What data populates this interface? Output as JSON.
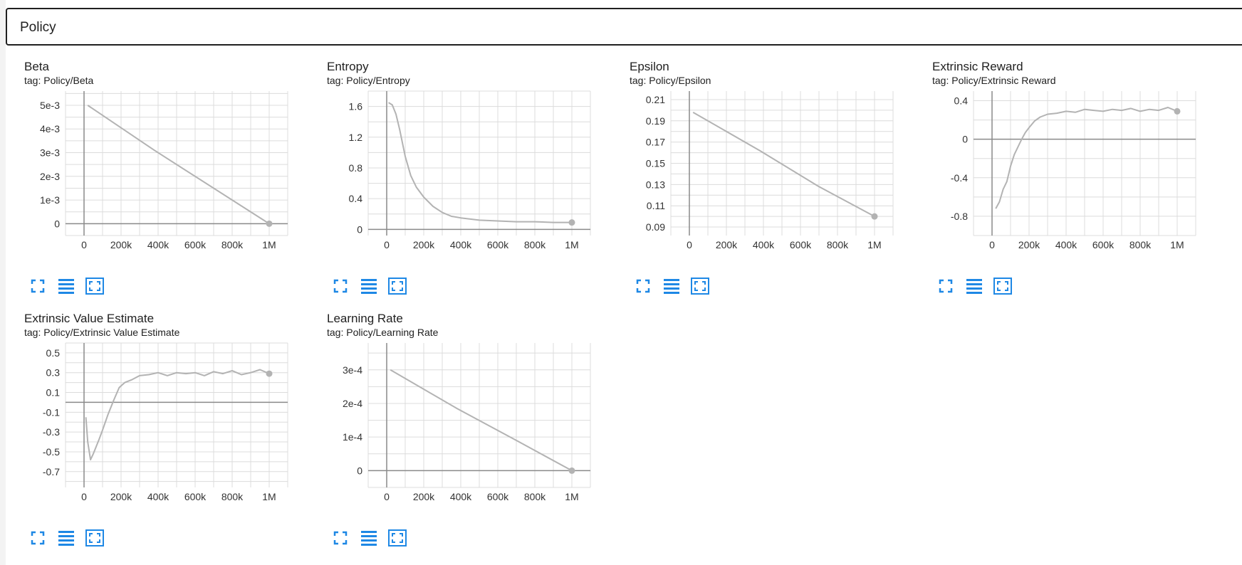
{
  "header": {
    "title": "Policy"
  },
  "colors": {
    "line": "#b3b3b3",
    "grid": "#dcdcdc",
    "axis": "#8a8a8a",
    "icon": "#1e88e5"
  },
  "icons": [
    "fullscreen-icon",
    "data-table-icon",
    "fit-domain-icon"
  ],
  "cards": [
    {
      "title": "Beta",
      "tag": "tag: Policy/Beta",
      "chart_data": {
        "type": "line",
        "x": [
          20000,
          380000,
          1000000
        ],
        "y": [
          0.005,
          0.0031,
          0.0
        ],
        "xlim": [
          -100000,
          1100000
        ],
        "ylim": [
          -0.0005,
          0.0056
        ],
        "xticks": [
          0,
          200000,
          400000,
          600000,
          800000,
          1000000
        ],
        "xticklabels": [
          "0",
          "200k",
          "400k",
          "600k",
          "800k",
          "1M"
        ],
        "yticks": [
          0,
          0.001,
          0.002,
          0.003,
          0.004,
          0.005
        ],
        "yticklabels": [
          "0",
          "1e-3",
          "2e-3",
          "3e-3",
          "4e-3",
          "5e-3"
        ]
      }
    },
    {
      "title": "Entropy",
      "tag": "tag: Policy/Entropy",
      "chart_data": {
        "type": "line",
        "x": [
          10000,
          30000,
          50000,
          70000,
          100000,
          130000,
          160000,
          200000,
          250000,
          300000,
          350000,
          400000,
          500000,
          600000,
          700000,
          800000,
          900000,
          1000000
        ],
        "y": [
          1.65,
          1.62,
          1.5,
          1.3,
          0.95,
          0.7,
          0.55,
          0.42,
          0.3,
          0.22,
          0.17,
          0.15,
          0.12,
          0.11,
          0.1,
          0.1,
          0.09,
          0.09
        ],
        "xlim": [
          -100000,
          1100000
        ],
        "ylim": [
          -0.08,
          1.8
        ],
        "xticks": [
          0,
          200000,
          400000,
          600000,
          800000,
          1000000
        ],
        "xticklabels": [
          "0",
          "200k",
          "400k",
          "600k",
          "800k",
          "1M"
        ],
        "yticks": [
          0,
          0.4,
          0.8,
          1.2,
          1.6
        ],
        "yticklabels": [
          "0",
          "0.4",
          "0.8",
          "1.2",
          "1.6"
        ]
      }
    },
    {
      "title": "Epsilon",
      "tag": "tag: Policy/Epsilon",
      "chart_data": {
        "type": "line",
        "x": [
          20000,
          380000,
          700000,
          1000000
        ],
        "y": [
          0.198,
          0.162,
          0.128,
          0.1
        ],
        "xlim": [
          -100000,
          1100000
        ],
        "ylim": [
          0.082,
          0.218
        ],
        "xticks": [
          0,
          200000,
          400000,
          600000,
          800000,
          1000000
        ],
        "xticklabels": [
          "0",
          "200k",
          "400k",
          "600k",
          "800k",
          "1M"
        ],
        "yticks": [
          0.09,
          0.11,
          0.13,
          0.15,
          0.17,
          0.19,
          0.21
        ],
        "yticklabels": [
          "0.09",
          "0.11",
          "0.13",
          "0.15",
          "0.17",
          "0.19",
          "0.21"
        ]
      }
    },
    {
      "title": "Extrinsic Reward",
      "tag": "tag: Policy/Extrinsic Reward",
      "chart_data": {
        "type": "line",
        "x": [
          20000,
          40000,
          60000,
          80000,
          100000,
          120000,
          140000,
          160000,
          180000,
          200000,
          230000,
          260000,
          300000,
          350000,
          400000,
          450000,
          500000,
          550000,
          600000,
          650000,
          700000,
          750000,
          800000,
          850000,
          900000,
          950000,
          1000000
        ],
        "y": [
          -0.72,
          -0.65,
          -0.52,
          -0.44,
          -0.28,
          -0.16,
          -0.08,
          0.0,
          0.07,
          0.12,
          0.19,
          0.23,
          0.26,
          0.27,
          0.29,
          0.28,
          0.31,
          0.3,
          0.29,
          0.31,
          0.3,
          0.32,
          0.29,
          0.31,
          0.3,
          0.33,
          0.29
        ],
        "xlim": [
          -100000,
          1100000
        ],
        "ylim": [
          -1.0,
          0.5
        ],
        "xticks": [
          0,
          200000,
          400000,
          600000,
          800000,
          1000000
        ],
        "xticklabels": [
          "0",
          "200k",
          "400k",
          "600k",
          "800k",
          "1M"
        ],
        "yticks": [
          -0.8,
          -0.4,
          0,
          0.4
        ],
        "yticklabels": [
          "-0.8",
          "-0.4",
          "0",
          "0.4"
        ]
      }
    },
    {
      "title": "Extrinsic Value Estimate",
      "tag": "tag: Policy/Extrinsic Value Estimate",
      "chart_data": {
        "type": "line",
        "x": [
          10000,
          20000,
          35000,
          50000,
          65000,
          80000,
          100000,
          130000,
          160000,
          190000,
          220000,
          260000,
          300000,
          350000,
          400000,
          450000,
          500000,
          550000,
          600000,
          650000,
          700000,
          750000,
          800000,
          850000,
          900000,
          950000,
          1000000
        ],
        "y": [
          -0.15,
          -0.4,
          -0.58,
          -0.52,
          -0.45,
          -0.38,
          -0.28,
          -0.12,
          0.02,
          0.15,
          0.2,
          0.23,
          0.27,
          0.28,
          0.3,
          0.27,
          0.3,
          0.29,
          0.3,
          0.27,
          0.31,
          0.29,
          0.32,
          0.28,
          0.3,
          0.33,
          0.29
        ],
        "xlim": [
          -100000,
          1100000
        ],
        "ylim": [
          -0.86,
          0.6
        ],
        "xticks": [
          0,
          200000,
          400000,
          600000,
          800000,
          1000000
        ],
        "xticklabels": [
          "0",
          "200k",
          "400k",
          "600k",
          "800k",
          "1M"
        ],
        "yticks": [
          -0.7,
          -0.5,
          -0.3,
          -0.1,
          0.1,
          0.3,
          0.5
        ],
        "yticklabels": [
          "-0.7",
          "-0.5",
          "-0.3",
          "-0.1",
          "0.1",
          "0.3",
          "0.5"
        ]
      }
    },
    {
      "title": "Learning Rate",
      "tag": "tag: Policy/Learning Rate",
      "chart_data": {
        "type": "line",
        "x": [
          20000,
          380000,
          700000,
          1000000
        ],
        "y": [
          0.0003,
          0.000185,
          9e-05,
          0.0
        ],
        "xlim": [
          -100000,
          1100000
        ],
        "ylim": [
          -5e-05,
          0.00038
        ],
        "xticks": [
          0,
          200000,
          400000,
          600000,
          800000,
          1000000
        ],
        "xticklabels": [
          "0",
          "200k",
          "400k",
          "600k",
          "800k",
          "1M"
        ],
        "yticks": [
          0,
          0.0001,
          0.0002,
          0.0003
        ],
        "yticklabels": [
          "0",
          "1e-4",
          "2e-4",
          "3e-4"
        ]
      }
    }
  ]
}
